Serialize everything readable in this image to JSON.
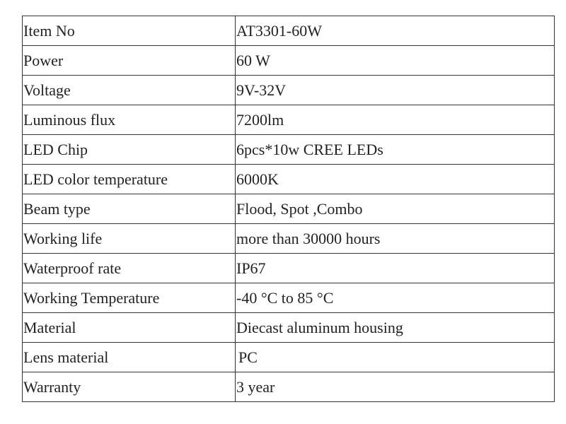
{
  "table": {
    "rows": [
      [
        "Item No",
        "AT3301-60W"
      ],
      [
        "Power",
        "60 W"
      ],
      [
        "Voltage",
        "9V-32V"
      ],
      [
        "Luminous flux",
        "7200lm"
      ],
      [
        "LED Chip",
        "6pcs*10w CREE LEDs"
      ],
      [
        "LED color temperature",
        "6000K"
      ],
      [
        "Beam type",
        "Flood, Spot ,Combo"
      ],
      [
        "Working life",
        "more than 30000 hours"
      ],
      [
        "Waterproof rate",
        "IP67"
      ],
      [
        "Working Temperature",
        "-40 °C to 85 °C"
      ],
      [
        "Material",
        "Diecast aluminum housing"
      ],
      [
        "Lens material",
        "PC"
      ],
      [
        "Warranty",
        "3 year"
      ]
    ]
  }
}
